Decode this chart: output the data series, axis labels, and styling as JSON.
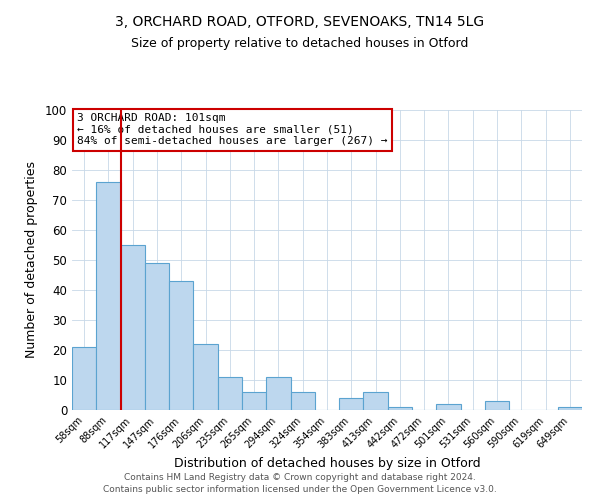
{
  "title1": "3, ORCHARD ROAD, OTFORD, SEVENOAKS, TN14 5LG",
  "title2": "Size of property relative to detached houses in Otford",
  "xlabel": "Distribution of detached houses by size in Otford",
  "ylabel": "Number of detached properties",
  "bin_labels": [
    "58sqm",
    "88sqm",
    "117sqm",
    "147sqm",
    "176sqm",
    "206sqm",
    "235sqm",
    "265sqm",
    "294sqm",
    "324sqm",
    "354sqm",
    "383sqm",
    "413sqm",
    "442sqm",
    "472sqm",
    "501sqm",
    "531sqm",
    "560sqm",
    "590sqm",
    "619sqm",
    "649sqm"
  ],
  "bar_values": [
    21,
    76,
    55,
    49,
    43,
    22,
    11,
    6,
    11,
    6,
    0,
    4,
    6,
    1,
    0,
    2,
    0,
    3,
    0,
    0,
    1
  ],
  "bar_color": "#bdd7ee",
  "bar_edge_color": "#5ba3d0",
  "ylim": [
    0,
    100
  ],
  "yticks": [
    0,
    10,
    20,
    30,
    40,
    50,
    60,
    70,
    80,
    90,
    100
  ],
  "vline_x": 1.5,
  "vline_color": "#cc0000",
  "annotation_box_text": "3 ORCHARD ROAD: 101sqm\n← 16% of detached houses are smaller (51)\n84% of semi-detached houses are larger (267) →",
  "annotation_box_color": "#cc0000",
  "footer1": "Contains HM Land Registry data © Crown copyright and database right 2024.",
  "footer2": "Contains public sector information licensed under the Open Government Licence v3.0.",
  "background_color": "#ffffff",
  "grid_color": "#c8d8e8"
}
